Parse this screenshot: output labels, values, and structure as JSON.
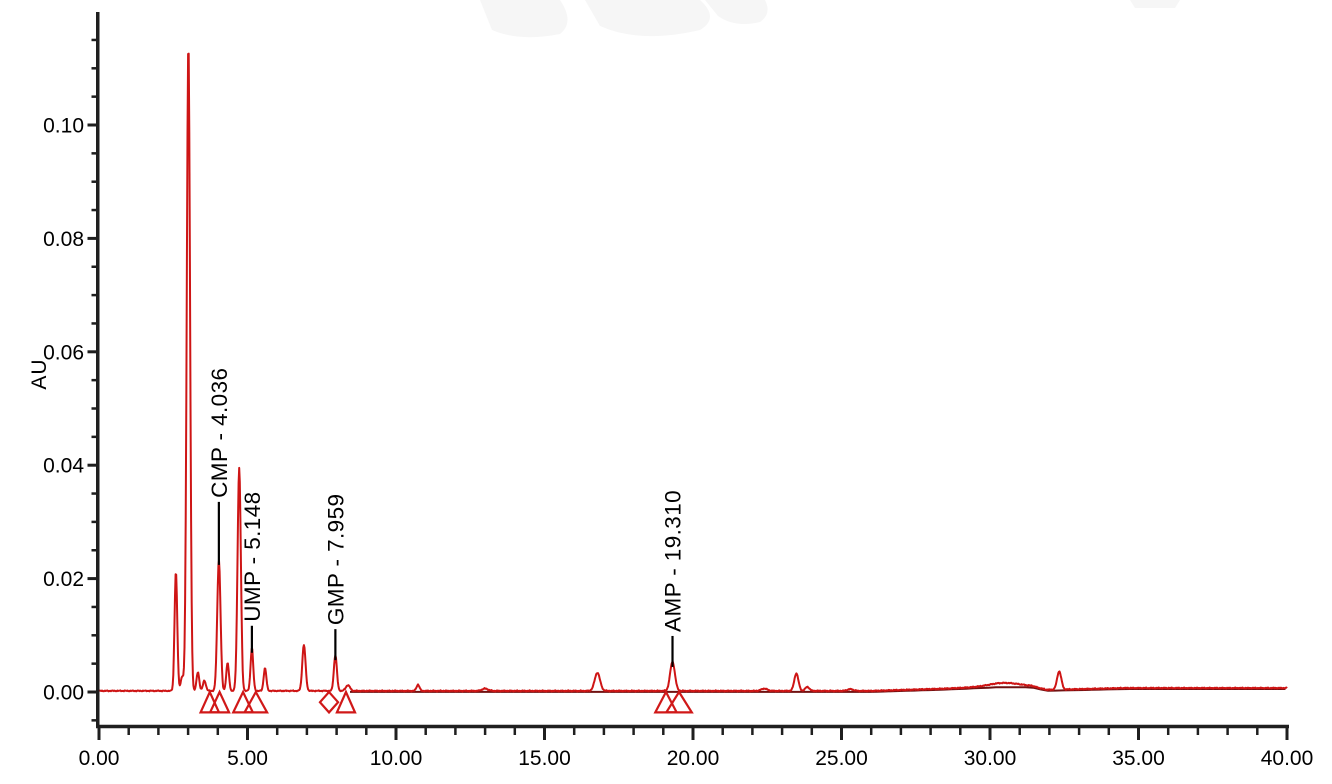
{
  "colors": {
    "trace": "#ce1515",
    "trace_dark": "#701212",
    "axis": "#1f1f1f",
    "peak_label_text": "#000000",
    "marker": "#d01818",
    "background": "#ffffff",
    "watermark": "#f6f6f6"
  },
  "chart_data": {
    "type": "line",
    "title": "",
    "xlabel": "",
    "ylabel": "AU",
    "xlim": [
      0,
      40
    ],
    "ylim": [
      -0.0075,
      0.12
    ],
    "grid": false,
    "legend": "none",
    "x_major_ticks": [
      {
        "v": 0,
        "label": "0.00"
      },
      {
        "v": 5,
        "label": "5.00"
      },
      {
        "v": 10,
        "label": "10.00"
      },
      {
        "v": 15,
        "label": "15.00"
      },
      {
        "v": 20,
        "label": "20.00"
      },
      {
        "v": 25,
        "label": "25.00"
      },
      {
        "v": 30,
        "label": "30.00"
      },
      {
        "v": 35,
        "label": "35.00"
      },
      {
        "v": 40,
        "label": "40.00"
      }
    ],
    "x_minor_step": 1,
    "y_major_ticks": [
      {
        "v": 0.0,
        "label": "0.00"
      },
      {
        "v": 0.02,
        "label": "0.02"
      },
      {
        "v": 0.04,
        "label": "0.04"
      },
      {
        "v": 0.06,
        "label": "0.06"
      },
      {
        "v": 0.08,
        "label": "0.08"
      },
      {
        "v": 0.1,
        "label": "0.10"
      }
    ],
    "y_minor_step": 0.005,
    "y_minor_range": [
      -0.005,
      0.115
    ],
    "labeled_peaks": [
      {
        "name": "CMP",
        "retention_time": 4.036,
        "label": "CMP - 4.036",
        "height_au": 0.0231,
        "sigma": 0.055,
        "line_len": 58
      },
      {
        "name": "UMP",
        "retention_time": 5.148,
        "label": "UMP - 5.148",
        "height_au": 0.0076,
        "sigma": 0.045,
        "line_len": 22
      },
      {
        "name": "GMP",
        "retention_time": 7.959,
        "label": "GMP - 7.959",
        "height_au": 0.0063,
        "sigma": 0.05,
        "line_len": 26
      },
      {
        "name": "AMP",
        "retention_time": 19.31,
        "label": "AMP - 19.310",
        "height_au": 0.0051,
        "sigma": 0.08,
        "line_len": 26
      }
    ],
    "unlabeled_peaks": [
      [
        2.59,
        0.021,
        0.045
      ],
      [
        2.8,
        0.0025,
        0.05
      ],
      [
        3.01,
        0.1142,
        0.055
      ],
      [
        3.33,
        0.0033,
        0.045
      ],
      [
        3.55,
        0.0018,
        0.05
      ],
      [
        4.33,
        0.0049,
        0.045
      ],
      [
        4.72,
        0.0393,
        0.055
      ],
      [
        5.59,
        0.004,
        0.045
      ],
      [
        6.9,
        0.0081,
        0.055
      ],
      [
        8.38,
        0.001,
        0.07
      ],
      [
        10.74,
        0.0011,
        0.05
      ],
      [
        13.0,
        0.0004,
        0.1
      ],
      [
        16.78,
        0.0032,
        0.09
      ],
      [
        22.4,
        0.0004,
        0.1
      ],
      [
        23.48,
        0.0031,
        0.07
      ],
      [
        23.85,
        0.0007,
        0.07
      ],
      [
        25.3,
        0.0003,
        0.1
      ],
      [
        30.5,
        0.0006,
        0.5
      ],
      [
        32.33,
        0.0032,
        0.07
      ]
    ],
    "baseline_drift": [
      [
        0,
        0.0002
      ],
      [
        26,
        0.0002
      ],
      [
        28.5,
        0.0006
      ],
      [
        30.2,
        0.001
      ],
      [
        31.4,
        0.001
      ],
      [
        31.9,
        0.0004
      ],
      [
        32.9,
        0.0005
      ],
      [
        34.5,
        0.0007
      ],
      [
        40,
        0.0007
      ]
    ],
    "integration_markers": [
      {
        "shape": "triangle",
        "t1": 3.42,
        "t2": 4.04
      },
      {
        "shape": "triangle",
        "t1": 3.74,
        "t2": 4.38
      },
      {
        "shape": "triangle",
        "t1": 4.52,
        "t2": 5.18
      },
      {
        "shape": "triangle",
        "t1": 4.9,
        "t2": 5.66
      },
      {
        "shape": "diamond",
        "t1": 7.44,
        "t2": 8.05
      },
      {
        "shape": "triangle",
        "t1": 8.01,
        "t2": 8.62
      },
      {
        "shape": "triangle",
        "t1": 18.73,
        "t2": 19.45
      },
      {
        "shape": "triangle",
        "t1": 19.1,
        "t2": 19.96
      }
    ],
    "marker_depth_au": 0.0036
  }
}
